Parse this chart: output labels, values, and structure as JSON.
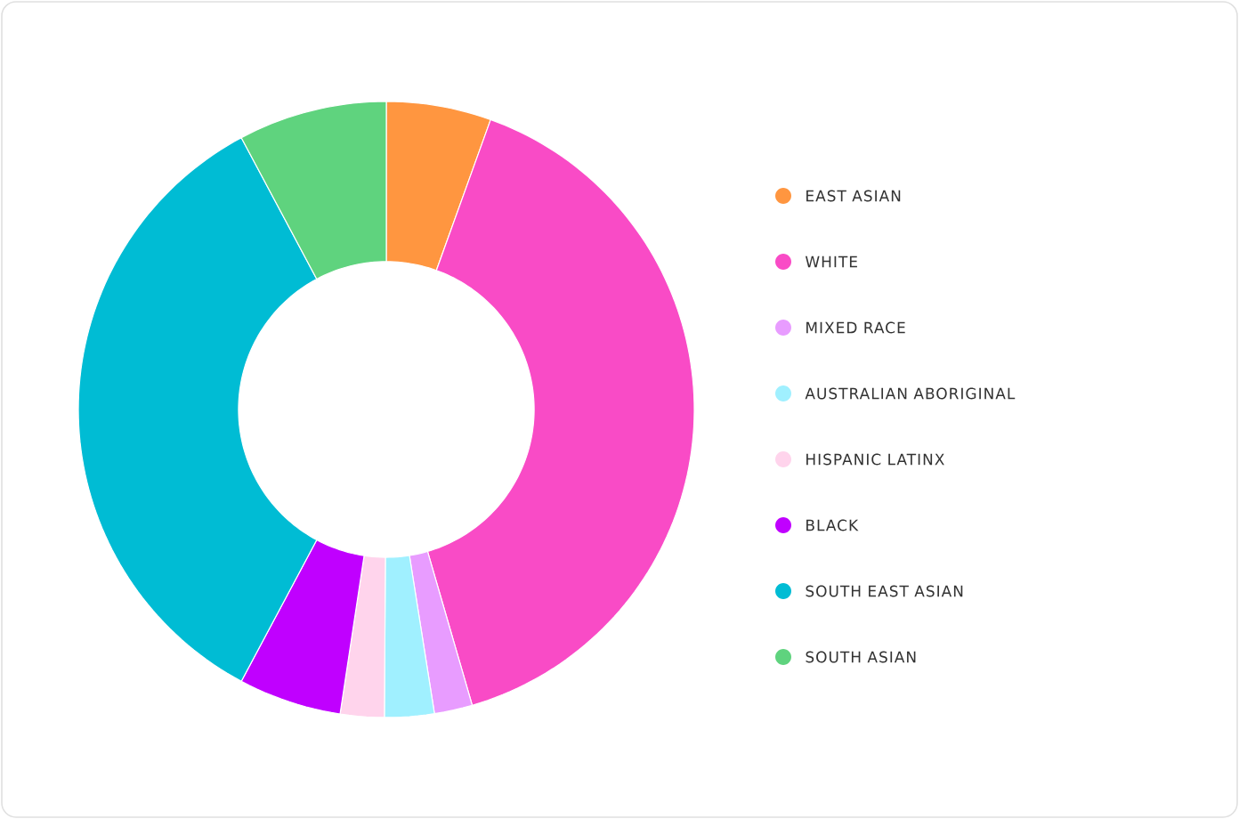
{
  "chart_data": {
    "type": "donut",
    "categories": [
      "EAST ASIAN",
      "WHITE",
      "MIXED RACE",
      "AUSTRALIAN ABORIGINAL",
      "HISPANIC LATINX",
      "BLACK",
      "SOUTH EAST ASIAN",
      "SOUTH ASIAN"
    ],
    "values": [
      5.5,
      40,
      2,
      2.6,
      2.3,
      5.4,
      34.4,
      7.8
    ],
    "colors": [
      "#ff9640",
      "#f94bc6",
      "#e89cff",
      "#a0f0ff",
      "#ffd4ec",
      "#c000ff",
      "#00bcd4",
      "#5fd37e"
    ],
    "legend": "right"
  }
}
